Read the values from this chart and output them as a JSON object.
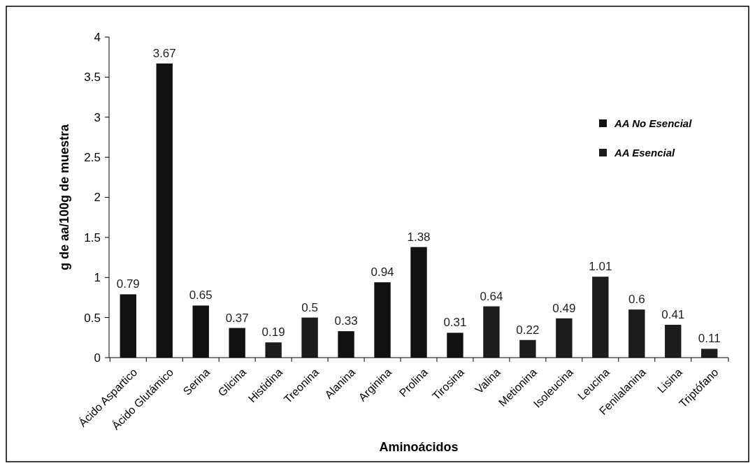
{
  "chart_data": {
    "type": "bar",
    "xlabel": "Aminoácidos",
    "ylabel": "g de aa/100g de muestra",
    "categories": [
      "Ácido Aspartico",
      "Ácido Glutámico",
      "Serina",
      "Glicina",
      "Histidina",
      "Treonina",
      "Alanina",
      "Arginina",
      "Prolina",
      "Tirosina",
      "Valina",
      "Metionina",
      "Isoleucina",
      "Leucina",
      "Fenilalanina",
      "Lisina",
      "Triptófano"
    ],
    "series": [
      {
        "name": "AA No Esencial",
        "color": "#111111",
        "values": [
          0.79,
          3.67,
          0.65,
          0.37,
          null,
          null,
          0.33,
          0.94,
          1.38,
          0.31,
          null,
          null,
          null,
          null,
          null,
          null,
          null
        ]
      },
      {
        "name": "AA  Esencial",
        "color": "#1c1c1c",
        "values": [
          null,
          null,
          null,
          null,
          0.19,
          0.5,
          null,
          null,
          null,
          null,
          0.64,
          0.22,
          0.49,
          1.01,
          0.6,
          0.41,
          0.11
        ]
      }
    ],
    "ylim": [
      0,
      4
    ],
    "yticks": [
      0,
      0.5,
      1,
      1.5,
      2,
      2.5,
      3,
      3.5,
      4
    ],
    "data_labels": true,
    "legend": "top right"
  }
}
